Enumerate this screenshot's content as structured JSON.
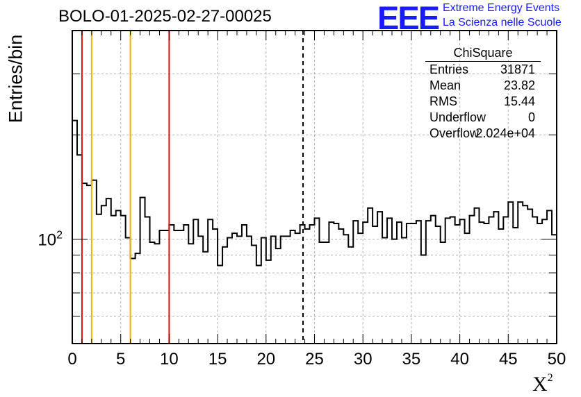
{
  "run_title": "BOLO-01-2025-02-27-00025",
  "logo": {
    "mark": "EEE",
    "line1": "Extreme Energy Events",
    "line2": "La Scienza nelle Scuole"
  },
  "stats": {
    "title": "ChiSquare",
    "rows": [
      {
        "label": "Entries",
        "value": "31871"
      },
      {
        "label": "Mean",
        "value": "23.82"
      },
      {
        "label": "RMS",
        "value": "15.44"
      },
      {
        "label": "Underflow",
        "value": "0"
      },
      {
        "label": "Overflow",
        "value": "2.024e+04"
      }
    ]
  },
  "chart_data": {
    "type": "histogram",
    "title": "BOLO-01-2025-02-27-00025",
    "xlabel": "X",
    "xlabel_superscript": "2",
    "ylabel": "Entries/bin",
    "xlim": [
      0,
      50
    ],
    "ylim": [
      50,
      400
    ],
    "yscale": "log",
    "grid": true,
    "xticks": [
      "0",
      "5",
      "10",
      "15",
      "20",
      "25",
      "30",
      "35",
      "40",
      "45",
      "50"
    ],
    "ytick_label": {
      "base": "10",
      "exp": "2",
      "value": 100
    },
    "bin_width": 0.5,
    "x": [
      0.25,
      0.75,
      1.25,
      1.75,
      2.25,
      2.75,
      3.25,
      3.75,
      4.25,
      4.75,
      5.25,
      5.75,
      6.25,
      6.75,
      7.25,
      7.75,
      8.25,
      8.75,
      9.25,
      9.75,
      10.25,
      10.75,
      11.25,
      11.75,
      12.25,
      12.75,
      13.25,
      13.75,
      14.25,
      14.75,
      15.25,
      15.75,
      16.25,
      16.75,
      17.25,
      17.75,
      18.25,
      18.75,
      19.25,
      19.75,
      20.25,
      20.75,
      21.25,
      21.75,
      22.25,
      22.75,
      23.25,
      23.75,
      24.25,
      24.75,
      25.25,
      25.75,
      26.25,
      26.75,
      27.25,
      27.75,
      28.25,
      28.75,
      29.25,
      29.75,
      30.25,
      30.75,
      31.25,
      31.75,
      32.25,
      32.75,
      33.25,
      33.75,
      34.25,
      34.75,
      35.25,
      35.75,
      36.25,
      36.75,
      37.25,
      37.75,
      38.25,
      38.75,
      39.25,
      39.75,
      40.25,
      40.75,
      41.25,
      41.75,
      42.25,
      42.75,
      43.25,
      43.75,
      44.25,
      44.75,
      45.25,
      45.75,
      46.25,
      46.75,
      47.25,
      47.75,
      48.25,
      48.75,
      49.25,
      49.75
    ],
    "values": [
      220,
      175,
      145,
      143,
      148,
      118,
      125,
      131,
      117,
      121,
      117,
      101,
      88,
      91,
      132,
      116,
      98,
      97,
      106,
      106,
      110,
      106,
      106,
      110,
      97,
      114,
      102,
      92,
      114,
      107,
      84,
      95,
      101,
      104,
      102,
      110,
      102,
      96,
      84,
      101,
      87,
      102,
      94,
      102,
      102,
      106,
      104,
      110,
      107,
      110,
      115,
      98,
      98,
      112,
      111,
      107,
      103,
      95,
      113,
      104,
      112,
      123,
      109,
      120,
      101,
      115,
      100,
      112,
      101,
      111,
      111,
      113,
      90,
      113,
      117,
      109,
      98,
      115,
      116,
      110,
      114,
      104,
      117,
      123,
      112,
      111,
      116,
      120,
      107,
      116,
      128,
      108,
      128,
      125,
      122,
      116,
      111,
      114,
      121,
      103
    ],
    "lines": [
      {
        "x": 1,
        "color": "#dd1111",
        "style": "solid"
      },
      {
        "x": 2,
        "color": "#f0b400",
        "style": "solid"
      },
      {
        "x": 6,
        "color": "#f0b400",
        "style": "solid"
      },
      {
        "x": 10,
        "color": "#dd1111",
        "style": "solid"
      },
      {
        "x": 23.82,
        "color": "#000000",
        "style": "dashed"
      }
    ]
  }
}
